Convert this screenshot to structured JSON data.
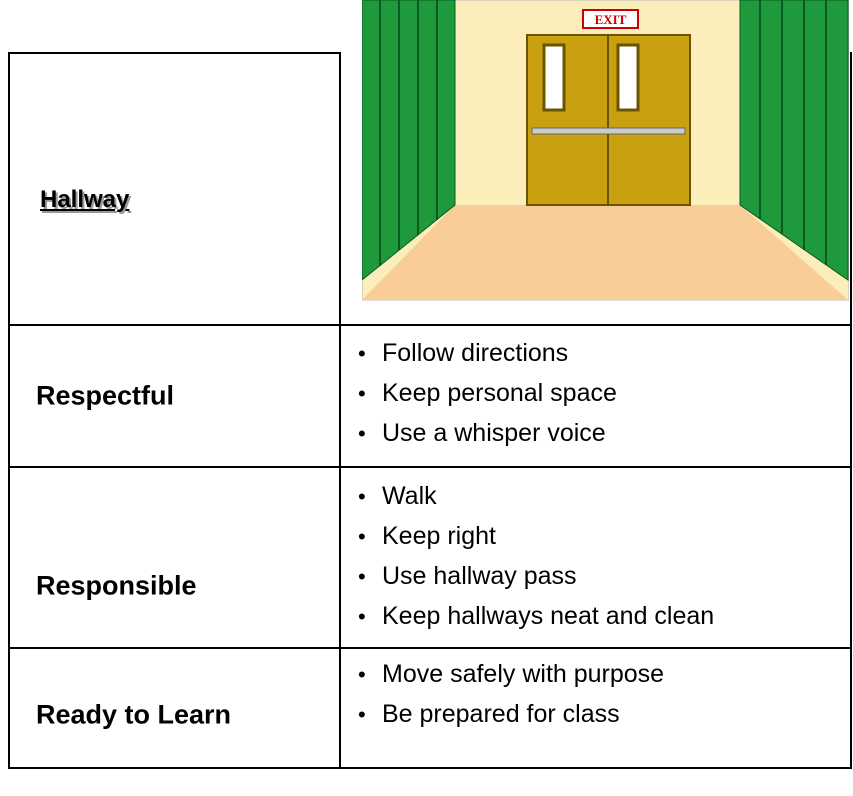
{
  "header": {
    "title": "Hallway",
    "sign": "EXIT"
  },
  "rows": [
    {
      "label": "Respectful",
      "items": [
        "Follow directions",
        "Keep personal space",
        "Use a whisper voice"
      ]
    },
    {
      "label": "Responsible",
      "items": [
        "Walk",
        "Keep right",
        "Use hallway pass",
        "Keep hallways neat and clean"
      ]
    },
    {
      "label": "Ready to Learn",
      "items": [
        "Move safely with purpose",
        "Be prepared for class"
      ]
    }
  ]
}
